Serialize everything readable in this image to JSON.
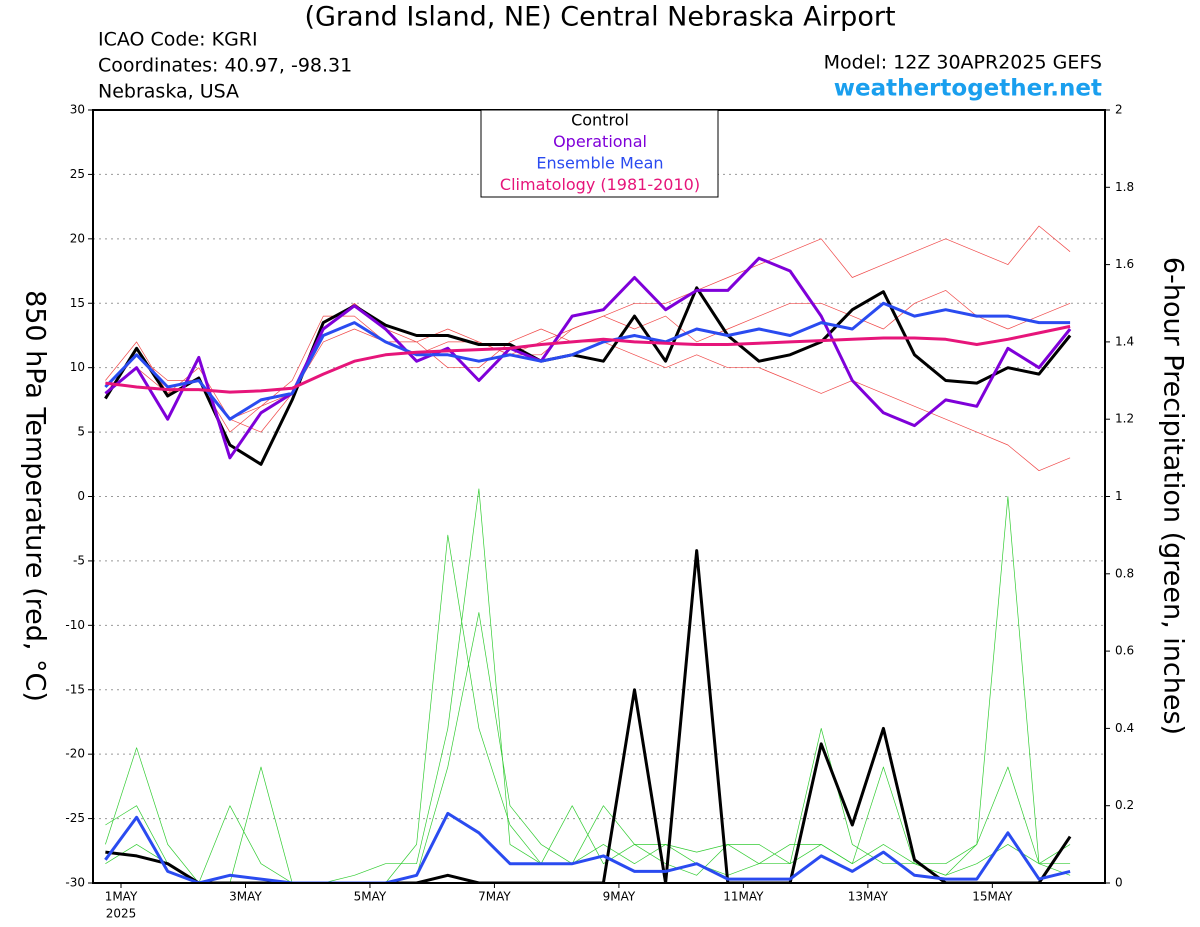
{
  "chart_data": {
    "type": "line",
    "title": "(Grand Island, NE) Central Nebraska Airport",
    "info": [
      "ICAO Code: KGRI",
      "Coordinates: 40.97, -98.31",
      "Nebraska, USA"
    ],
    "model": "Model: 12Z 30APR2025 GEFS",
    "site": "weathertogether.net",
    "ylabel": "850 hPa Temperature (red, °C)",
    "y2label": "6-hour Precipitation (green, inches)",
    "x": [
      0.75,
      1.25,
      1.75,
      2.25,
      2.75,
      3.25,
      3.75,
      4.25,
      4.75,
      5.25,
      5.75,
      6.25,
      6.75,
      7.25,
      7.75,
      8.25,
      8.75,
      9.25,
      9.75,
      10.25,
      10.75,
      11.25,
      11.75,
      12.25,
      12.75,
      13.25,
      13.75,
      14.25,
      14.75,
      15.25,
      15.75,
      16.25
    ],
    "xlim": [
      0.55,
      16.81
    ],
    "xticks": [
      {
        "value": 1,
        "label": "1MAY"
      },
      {
        "value": 3,
        "label": "3MAY"
      },
      {
        "value": 5,
        "label": "5MAY"
      },
      {
        "value": 7,
        "label": "7MAY"
      },
      {
        "value": 9,
        "label": "9MAY"
      },
      {
        "value": 11,
        "label": "11MAY"
      },
      {
        "value": 13,
        "label": "13MAY"
      },
      {
        "value": 15,
        "label": "15MAY"
      }
    ],
    "year_label": "2025",
    "ylim": [
      -30,
      30
    ],
    "yticks": [
      -30,
      -25,
      -20,
      -15,
      -10,
      -5,
      0,
      5,
      10,
      15,
      20,
      25,
      30
    ],
    "y2lim": [
      0,
      2
    ],
    "y2ticks": [
      0,
      0.2,
      0.4,
      0.6,
      0.8,
      1,
      1.2,
      1.4,
      1.6,
      1.8,
      2
    ],
    "grid": true,
    "series": [
      {
        "name": "Control",
        "color": "#000000",
        "values": [
          7.6,
          11.5,
          7.8,
          9.2,
          4.0,
          2.5,
          7.5,
          13.5,
          14.8,
          13.3,
          12.5,
          12.5,
          11.8,
          11.8,
          10.5,
          11.0,
          10.5,
          14.0,
          10.5,
          16.2,
          12.5,
          10.5,
          11.0,
          12.0,
          14.5,
          15.9,
          11.0,
          9.0,
          8.8,
          10.0,
          9.5,
          12.5
        ]
      },
      {
        "name": "Operational",
        "color": "#7f00d9",
        "values": [
          8.0,
          10,
          6,
          10.8,
          3,
          6.5,
          8,
          13,
          14.8,
          13,
          10.5,
          11.5,
          9,
          11.5,
          10.5,
          14,
          14.5,
          17,
          14.5,
          16,
          16,
          18.5,
          17.5,
          14,
          9,
          6.5,
          5.5,
          7.5,
          7,
          11.5,
          10,
          13
        ]
      },
      {
        "name": "Ensemble Mean",
        "color": "#2a4bf0",
        "values": [
          8.5,
          11,
          8.5,
          9,
          6,
          7.5,
          8,
          12.5,
          13.5,
          12,
          11,
          11,
          10.5,
          11,
          10.5,
          11,
          12,
          12.5,
          12,
          13,
          12.5,
          13,
          12.5,
          13.5,
          13,
          15,
          14,
          14.5,
          14,
          14,
          13.5,
          13.5
        ]
      },
      {
        "name": "Climatology (1981-2010)",
        "color": "#e6157a",
        "values": [
          8.8,
          8.5,
          8.3,
          8.3,
          8.1,
          8.2,
          8.4,
          9.5,
          10.5,
          11,
          11.2,
          11.3,
          11.4,
          11.5,
          11.8,
          12,
          12.2,
          12,
          11.9,
          11.8,
          11.8,
          11.9,
          12,
          12.1,
          12.2,
          12.3,
          12.3,
          12.2,
          11.8,
          12.2,
          12.7,
          13.2
        ]
      }
    ],
    "precip_series": [
      {
        "color": "#000000",
        "axis": "y2",
        "values": [
          0.08,
          0.07,
          0.05,
          0,
          0,
          0,
          0,
          0,
          0,
          0,
          0,
          0.02,
          0,
          0,
          0,
          0,
          0,
          0.5,
          0,
          0.86,
          0,
          0,
          0,
          0.36,
          0.15,
          0.4,
          0.06,
          0,
          0,
          0,
          0,
          0.12
        ]
      },
      {
        "color": "#2a4bf0",
        "axis": "y2",
        "values": [
          0.06,
          0.17,
          0.03,
          0,
          0.02,
          0.01,
          0,
          0,
          0,
          0,
          0.02,
          0.18,
          0.13,
          0.05,
          0.05,
          0.05,
          0.07,
          0.03,
          0.03,
          0.05,
          0.01,
          0.01,
          0.01,
          0.07,
          0.03,
          0.08,
          0.02,
          0.01,
          0.01,
          0.13,
          0.01,
          0.03
        ]
      }
    ],
    "members": [
      {
        "color": "#f04a4a",
        "values": [
          9,
          12,
          8,
          9,
          5,
          7,
          9,
          14,
          14,
          12,
          11,
          12,
          12,
          11,
          11,
          13,
          14,
          15,
          15,
          16,
          17,
          18,
          19,
          20,
          17,
          18,
          19,
          20,
          19,
          18,
          21,
          19
        ]
      },
      {
        "color": "#f04a4a",
        "values": [
          8,
          10,
          8,
          10,
          6,
          5,
          8,
          13,
          15,
          13,
          12,
          10,
          10,
          12,
          13,
          12,
          12,
          11,
          10,
          11,
          10,
          10,
          9,
          8,
          9,
          8,
          7,
          6,
          5,
          4,
          2,
          3
        ]
      },
      {
        "color": "#f04a4a",
        "values": [
          8,
          11,
          9,
          9,
          6,
          7,
          8,
          12,
          13,
          12,
          12,
          13,
          12,
          11,
          12,
          13,
          14,
          13,
          14,
          12,
          13,
          14,
          15,
          15,
          14,
          13,
          15,
          16,
          14,
          13,
          14,
          15
        ]
      },
      {
        "color": "#33cc33",
        "axis": "y2",
        "values": [
          0.1,
          0.35,
          0.1,
          0,
          0.2,
          0.05,
          0,
          0,
          0,
          0,
          0.02,
          0.3,
          0.7,
          0.2,
          0.1,
          0.05,
          0.1,
          0.05,
          0.1,
          0.05,
          0.02,
          0.05,
          0.1,
          0.1,
          0.05,
          0.1,
          0.05,
          0.02,
          0.1,
          0.3,
          0.05,
          0.02
        ]
      },
      {
        "color": "#33cc33",
        "axis": "y2",
        "values": [
          0.05,
          0.1,
          0.05,
          0,
          0,
          0.3,
          0,
          0,
          0,
          0,
          0.1,
          0.9,
          0.4,
          0.15,
          0.05,
          0.2,
          0.05,
          0.1,
          0.1,
          0.08,
          0.1,
          0.05,
          0.05,
          0.4,
          0.1,
          0.05,
          0.05,
          0.02,
          0.05,
          0.1,
          0.05,
          0.1
        ]
      },
      {
        "color": "#33cc33",
        "axis": "y2",
        "values": [
          0.15,
          0.2,
          0.05,
          0,
          0,
          0,
          0,
          0,
          0.02,
          0.05,
          0.05,
          0.4,
          1.02,
          0.1,
          0.05,
          0.05,
          0.2,
          0.1,
          0.05,
          0.02,
          0.1,
          0.1,
          0.05,
          0.1,
          0.05,
          0.3,
          0.05,
          0.05,
          0.1,
          1.0,
          0.05,
          0.05
        ]
      }
    ]
  }
}
